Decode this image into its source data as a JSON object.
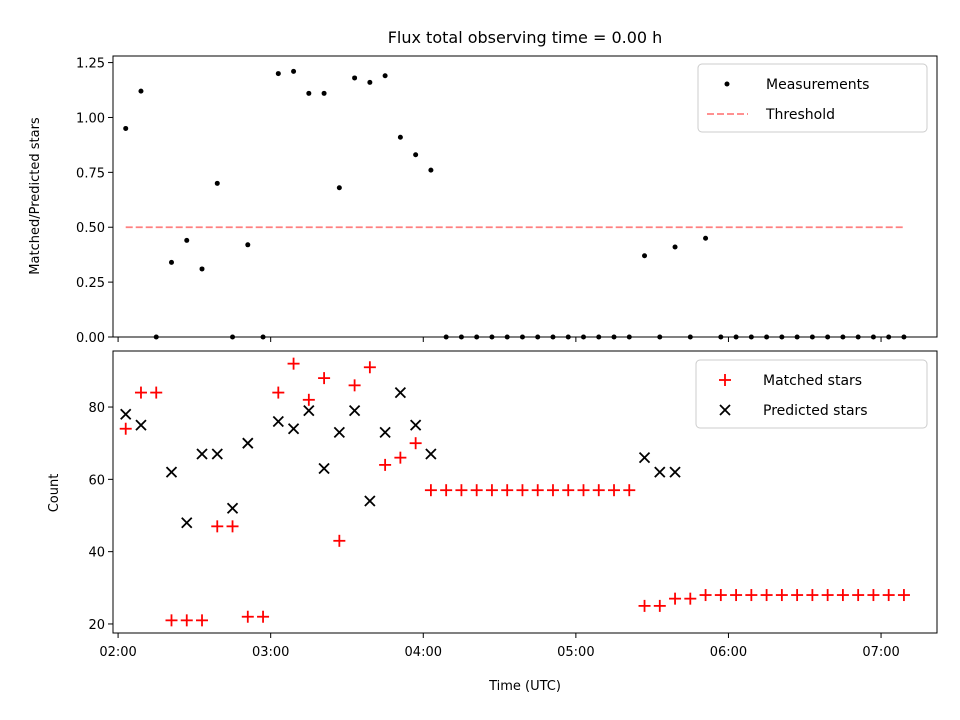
{
  "chart_data": [
    {
      "type": "scatter",
      "title": "Flux total observing time = 0.00 h",
      "xlabel": "",
      "ylabel": "Matched/Predicted stars",
      "xlim_min": [
        120,
        444
      ],
      "ylim": [
        0,
        1.28
      ],
      "yticks": [
        0.0,
        0.25,
        0.5,
        0.75,
        1.0,
        1.25
      ],
      "ytick_labels": [
        "0.00",
        "0.25",
        "0.50",
        "0.75",
        "1.00",
        "1.25"
      ],
      "legend_position": "top-right",
      "legend": [
        "Measurements",
        "Threshold"
      ],
      "series": [
        {
          "name": "Measurements",
          "marker": "dot",
          "color": "#000000",
          "x_min": [
            125,
            131,
            137,
            143,
            149,
            155,
            161,
            167,
            173,
            179,
            185,
            191,
            197,
            203,
            209,
            215,
            221,
            227,
            233,
            239,
            245,
            251,
            257,
            263,
            269,
            275,
            281,
            287,
            293,
            299,
            305,
            311,
            317,
            323,
            329,
            335,
            341,
            347,
            353,
            359,
            365,
            371,
            377,
            383,
            389,
            395,
            401,
            407,
            413,
            419,
            425,
            431
          ],
          "y": [
            0.95,
            1.12,
            0.0,
            0.34,
            0.44,
            0.31,
            0.7,
            0.0,
            0.42,
            0.0,
            1.2,
            1.21,
            1.11,
            1.11,
            0.68,
            1.18,
            1.16,
            1.19,
            0.91,
            0.83,
            0.76,
            0.0,
            0.0,
            0.0,
            0.0,
            0.0,
            0.0,
            0.0,
            0.0,
            0.0,
            0.0,
            0.0,
            0.0,
            0.0,
            0.37,
            0.0,
            0.41,
            0.0,
            0.45,
            0.0,
            0.0,
            0.0,
            0.0,
            0.0,
            0.0,
            0.0,
            0.0,
            0.0,
            0.0,
            0.0,
            0.0,
            0.0
          ]
        },
        {
          "name": "Threshold",
          "line": "dashed",
          "color": "#ff8080",
          "x_min": [
            125,
            431
          ],
          "y": [
            0.5,
            0.5
          ]
        }
      ]
    },
    {
      "type": "scatter",
      "title": "",
      "xlabel": "Time (UTC)",
      "ylabel": "Count",
      "xlim_min": [
        120,
        444
      ],
      "ylim": [
        17.5,
        95.5
      ],
      "yticks": [
        20,
        40,
        60,
        80
      ],
      "ytick_labels": [
        "20",
        "40",
        "60",
        "80"
      ],
      "xticks_min": [
        122,
        182,
        242,
        302,
        362,
        422
      ],
      "xtick_labels": [
        "02:00",
        "03:00",
        "04:00",
        "05:00",
        "06:00",
        "07:00"
      ],
      "legend_position": "top-right",
      "legend": [
        "Matched stars",
        "Predicted stars"
      ],
      "series": [
        {
          "name": "Matched stars",
          "marker": "plus",
          "color": "#ff0000",
          "x_min": [
            125,
            131,
            137,
            143,
            149,
            155,
            161,
            167,
            173,
            179,
            185,
            191,
            197,
            203,
            209,
            215,
            221,
            227,
            233,
            239,
            245,
            251,
            257,
            263,
            269,
            275,
            281,
            287,
            293,
            299,
            305,
            311,
            317,
            323,
            329,
            335,
            341,
            347,
            353,
            359,
            365,
            371,
            377,
            383,
            389,
            395,
            401,
            407,
            413,
            419,
            425,
            431
          ],
          "y": [
            74,
            84,
            84,
            21,
            21,
            21,
            47,
            47,
            22,
            22,
            84,
            92,
            82,
            88,
            43,
            86,
            91,
            64,
            66,
            70,
            57,
            57,
            57,
            57,
            57,
            57,
            57,
            57,
            57,
            57,
            57,
            57,
            57,
            57,
            25,
            25,
            27,
            27,
            28,
            28,
            28,
            28,
            28,
            28,
            28,
            28,
            28,
            28,
            28,
            28,
            28,
            28
          ]
        },
        {
          "name": "Predicted stars",
          "marker": "x",
          "color": "#000000",
          "x_min": [
            125,
            131,
            143,
            149,
            155,
            161,
            167,
            173,
            185,
            191,
            197,
            203,
            209,
            215,
            221,
            227,
            233,
            239,
            245,
            329,
            335,
            341
          ],
          "y": [
            78,
            75,
            62,
            48,
            67,
            67,
            52,
            70,
            76,
            74,
            79,
            63,
            73,
            79,
            54,
            73,
            84,
            75,
            67,
            66,
            62,
            62
          ]
        }
      ]
    }
  ]
}
